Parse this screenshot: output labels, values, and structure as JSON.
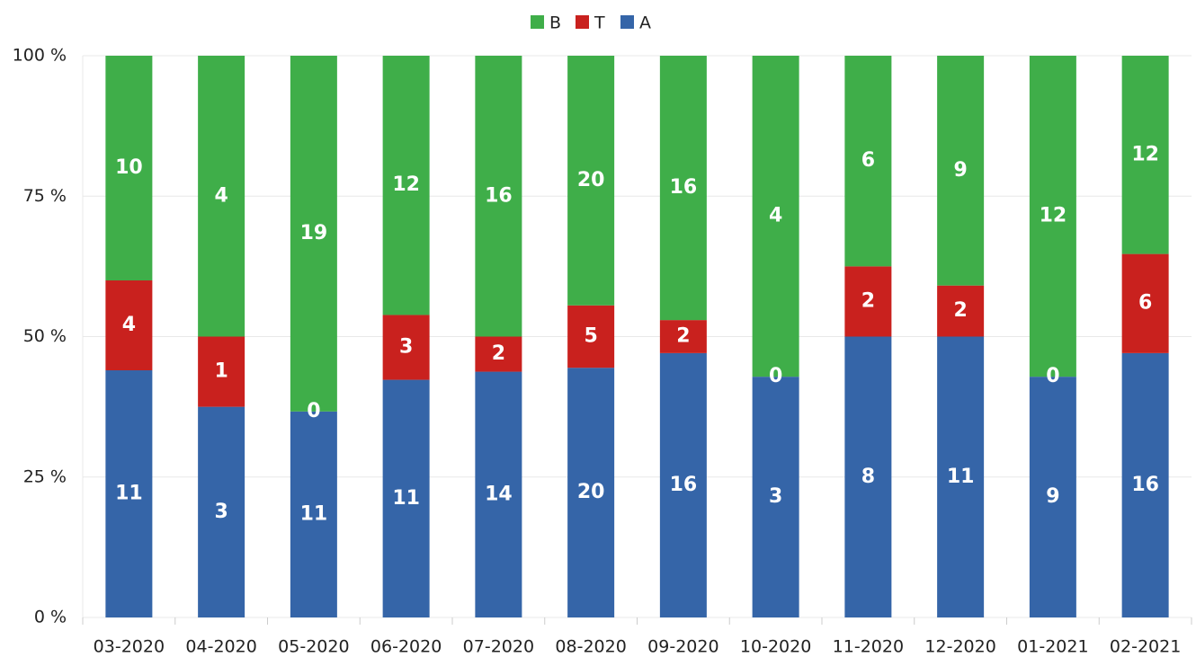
{
  "chart_data": {
    "type": "bar",
    "stacking": "percent",
    "categories": [
      "03-2020",
      "04-2020",
      "05-2020",
      "06-2020",
      "07-2020",
      "08-2020",
      "09-2020",
      "10-2020",
      "11-2020",
      "12-2020",
      "01-2021",
      "02-2021"
    ],
    "series": [
      {
        "name": "A",
        "color": "#3565a8",
        "values": [
          11,
          3,
          11,
          11,
          14,
          20,
          16,
          3,
          8,
          11,
          9,
          16
        ]
      },
      {
        "name": "T",
        "color": "#c9211e",
        "values": [
          4,
          1,
          0,
          3,
          2,
          5,
          2,
          0,
          2,
          2,
          0,
          6
        ]
      },
      {
        "name": "B",
        "color": "#3fae49",
        "values": [
          10,
          4,
          19,
          12,
          16,
          20,
          16,
          4,
          6,
          9,
          12,
          12
        ]
      }
    ],
    "ylim": [
      0,
      100
    ],
    "yticks": [
      {
        "value": 0,
        "label": "0 %"
      },
      {
        "value": 25,
        "label": "25 %"
      },
      {
        "value": 50,
        "label": "50 %"
      },
      {
        "value": 75,
        "label": "75 %"
      },
      {
        "value": 100,
        "label": "100 %"
      }
    ],
    "grid": true,
    "legend": "top"
  }
}
